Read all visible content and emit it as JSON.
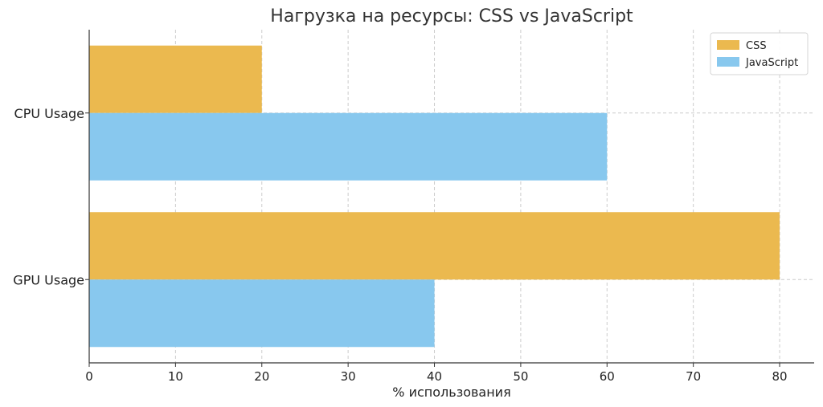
{
  "chart_data": {
    "type": "bar",
    "orientation": "horizontal",
    "title": "Нагрузка на ресурсы: CSS vs JavaScript",
    "xlabel": "% использования",
    "ylabel": "",
    "categories": [
      "CPU Usage",
      "GPU Usage"
    ],
    "series": [
      {
        "name": "CSS",
        "color": "#ebb94f",
        "values": [
          20,
          80
        ]
      },
      {
        "name": "JavaScript",
        "color": "#88c8ee",
        "values": [
          60,
          40
        ]
      }
    ],
    "xlim": [
      0,
      84
    ],
    "xticks": [
      0,
      10,
      20,
      30,
      40,
      50,
      60,
      70,
      80
    ],
    "grid": true,
    "legend_position": "top-right"
  }
}
